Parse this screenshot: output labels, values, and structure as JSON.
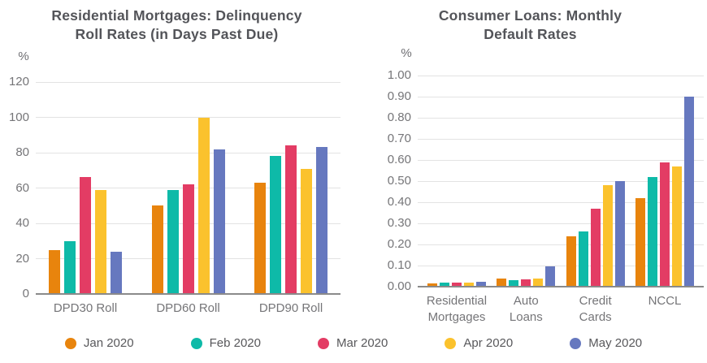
{
  "colors": {
    "background": "#FFFFFF",
    "title_text": "#535459",
    "axis_text": "#757578",
    "gridline": "#E3E3E3",
    "axis_line": "#8A8A8A",
    "jan": "#E8840D",
    "feb": "#0EBAA8",
    "mar": "#E33C64",
    "apr": "#FBC22D",
    "may": "#6678BF"
  },
  "legend": {
    "items": [
      {
        "label": "Jan 2020",
        "color": "#E8840D"
      },
      {
        "label": "Feb 2020",
        "color": "#0EBAA8"
      },
      {
        "label": "Mar 2020",
        "color": "#E33C64"
      },
      {
        "label": "Apr 2020",
        "color": "#FBC22D"
      },
      {
        "label": "May 2020",
        "color": "#6678BF"
      }
    ]
  },
  "chart_data": [
    {
      "type": "bar",
      "title": "Residential Mortgages: Delinquency\nRoll Rates (in Days Past Due)",
      "ylabel": "%",
      "xlabel": "",
      "ylim": [
        0,
        120
      ],
      "yticks": [
        "120",
        "100",
        "80",
        "60",
        "40",
        "20",
        "0"
      ],
      "grid": true,
      "legend_position": "bottom-shared",
      "categories": [
        "DPD30 Roll",
        "DPD60 Roll",
        "DPD90 Roll"
      ],
      "series": [
        {
          "name": "Jan 2020",
          "color": "#E8840D",
          "values": [
            25,
            50,
            63
          ]
        },
        {
          "name": "Feb 2020",
          "color": "#0EBAA8",
          "values": [
            30,
            59,
            78
          ]
        },
        {
          "name": "Mar 2020",
          "color": "#E33C64",
          "values": [
            66,
            62,
            84
          ]
        },
        {
          "name": "Apr 2020",
          "color": "#FBC22D",
          "values": [
            59,
            100,
            71
          ]
        },
        {
          "name": "May 2020",
          "color": "#6678BF",
          "values": [
            24,
            82,
            83
          ]
        }
      ]
    },
    {
      "type": "bar",
      "title": "Consumer Loans: Monthly\nDefault Rates",
      "ylabel": "%",
      "xlabel": "",
      "ylim": [
        0,
        1.0
      ],
      "yticks": [
        "1.00",
        "0.90",
        "0.80",
        "0.70",
        "0.60",
        "0.50",
        "0.40",
        "0.30",
        "0.20",
        "0.10",
        "0.00"
      ],
      "grid": true,
      "legend_position": "bottom-shared",
      "categories": [
        "Residential\nMortgages",
        "Auto\nLoans",
        "Credit\nCards",
        "NCCL"
      ],
      "series": [
        {
          "name": "Jan 2020",
          "color": "#E8840D",
          "values": [
            0.015,
            0.04,
            0.24,
            0.42
          ]
        },
        {
          "name": "Feb 2020",
          "color": "#0EBAA8",
          "values": [
            0.02,
            0.03,
            0.26,
            0.52
          ]
        },
        {
          "name": "Mar 2020",
          "color": "#E33C64",
          "values": [
            0.02,
            0.035,
            0.37,
            0.59
          ]
        },
        {
          "name": "Apr 2020",
          "color": "#FBC22D",
          "values": [
            0.02,
            0.04,
            0.48,
            0.57
          ]
        },
        {
          "name": "May 2020",
          "color": "#6678BF",
          "values": [
            0.025,
            0.095,
            0.5,
            0.9
          ]
        }
      ]
    }
  ]
}
